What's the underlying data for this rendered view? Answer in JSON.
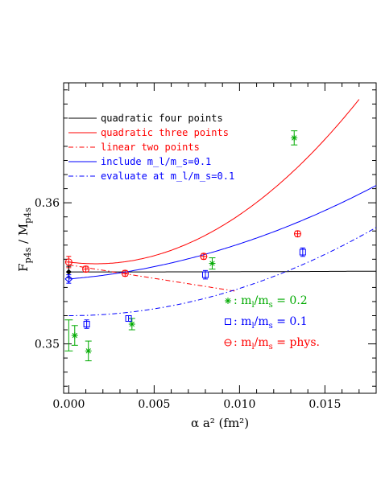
{
  "chart_data": {
    "type": "line",
    "title": "",
    "xlabel": "α a² (fm²)",
    "ylabel": "F_p4s / M_p4s",
    "xlim": [
      -0.0003,
      0.018
    ],
    "ylim": [
      0.3465,
      0.3685
    ],
    "x_ticks": [
      "0.000",
      "0.005",
      "0.010",
      "0.015"
    ],
    "x_tick_values": [
      0.0,
      0.005,
      0.01,
      0.015
    ],
    "y_ticks": [
      "0.35",
      "0.36"
    ],
    "y_tick_values": [
      0.35,
      0.36
    ],
    "legend_lines": [
      {
        "text": "quadratic four points",
        "color": "#000000",
        "style": "solid"
      },
      {
        "text": "quadratic three points",
        "color": "#ff0000",
        "style": "solid"
      },
      {
        "text": "linear two points",
        "color": "#ff0000",
        "style": "dashdot"
      },
      {
        "text": "include m_l/m_s=0.1",
        "color": "#0000ff",
        "style": "solid"
      },
      {
        "text": "evaluate at  m_l/m_s=0.1",
        "color": "#0000ff",
        "style": "dashdot"
      }
    ],
    "legend_points": [
      {
        "prefix": "m",
        "sub1": "l",
        "mid": "/m",
        "sub2": "s",
        "suffix": " = 0.2",
        "color": "#00aa00",
        "marker": "burst"
      },
      {
        "prefix": "m",
        "sub1": "l",
        "mid": "/m",
        "sub2": "s",
        "suffix": " = 0.1",
        "color": "#0000ff",
        "marker": "square"
      },
      {
        "prefix": "m",
        "sub1": "l",
        "mid": "/m",
        "sub2": "s",
        "suffix": " = phys.",
        "color": "#ff0000",
        "marker": "circle"
      }
    ],
    "curves": [
      {
        "name": "quadratic four points",
        "color": "#000000",
        "style": "solid",
        "coef": [
          0.3551,
          -0.0005,
          0.195
        ],
        "xrange": [
          0.0,
          0.018
        ]
      },
      {
        "name": "quadratic three points",
        "color": "#ff0000",
        "style": "solid",
        "coef": [
          0.3558,
          -0.155,
          49.0
        ],
        "xrange": [
          0.0,
          0.017
        ]
      },
      {
        "name": "linear two points",
        "color": "#ff0000",
        "style": "dashdot",
        "coef": [
          0.3556,
          -0.191,
          0.0
        ],
        "xrange": [
          0.0,
          0.0098
        ]
      },
      {
        "name": "include m_l/m_s=0.1",
        "color": "#0000ff",
        "style": "solid",
        "coef": [
          0.3546,
          0.1,
          14.9
        ],
        "xrange": [
          0.0,
          0.018
        ]
      },
      {
        "name": "evaluate at  m_l/m_s=0.1",
        "color": "#0000ff",
        "style": "dashdot",
        "coef": [
          0.352,
          0.0,
          19.3
        ],
        "xrange": [
          0.0,
          0.018
        ]
      }
    ],
    "points": {
      "green": [
        {
          "x": 0.00035,
          "y": 0.3506,
          "err": 0.0007
        },
        {
          "x": 0.00115,
          "y": 0.3495,
          "err": 0.0007
        },
        {
          "x": 0.0037,
          "y": 0.3514,
          "err": 0.0004
        },
        {
          "x": 0.0084,
          "y": 0.3557,
          "err": 0.0004
        },
        {
          "x": 0.0132,
          "y": 0.3646,
          "err": 0.0005
        }
      ],
      "blue": [
        {
          "x": 0.00105,
          "y": 0.3514,
          "err": 0.0003
        },
        {
          "x": 0.0035,
          "y": 0.3518,
          "err": 0.0002
        },
        {
          "x": 0.008,
          "y": 0.3549,
          "err": 0.0003
        },
        {
          "x": 0.0137,
          "y": 0.3565,
          "err": 0.0003
        }
      ],
      "red": [
        {
          "x": 0.0,
          "y": 0.3558,
          "err": 0.0004
        },
        {
          "x": 0.001,
          "y": 0.3553,
          "err": 0.0002
        },
        {
          "x": 0.0033,
          "y": 0.355,
          "err": 0.0002
        },
        {
          "x": 0.0079,
          "y": 0.3562,
          "err": 0.0002
        },
        {
          "x": 0.0134,
          "y": 0.3578,
          "err": 0.0002
        }
      ],
      "extrap_black": {
        "x": 0.0,
        "y": 0.3551,
        "err": 0.0004
      },
      "extrap_blue": {
        "x": 0.0,
        "y": 0.3546,
        "err": 0.0003
      },
      "extrap_green": {
        "x": 0.0,
        "y": 0.3506,
        "err": 0.0011
      }
    }
  }
}
